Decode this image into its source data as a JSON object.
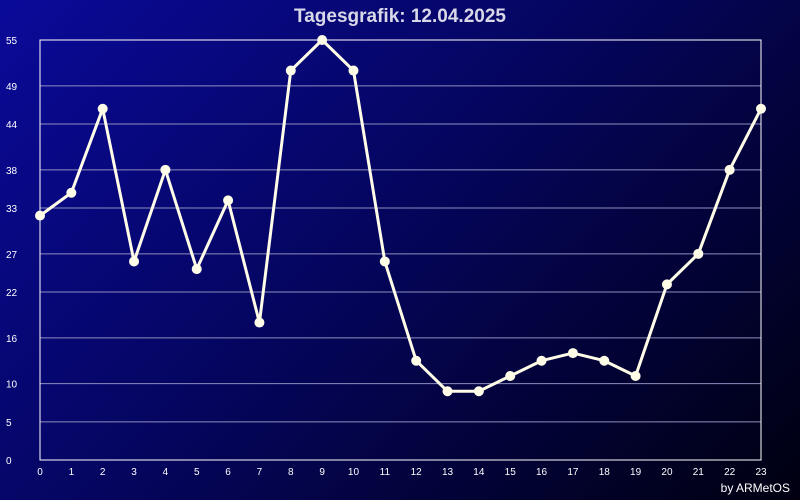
{
  "chart_data": {
    "type": "line",
    "title": "Tagesgrafik: 12.04.2025",
    "x": [
      0,
      1,
      2,
      3,
      4,
      5,
      6,
      7,
      8,
      9,
      10,
      11,
      12,
      13,
      14,
      15,
      16,
      17,
      18,
      19,
      20,
      21,
      22,
      23
    ],
    "series": [
      {
        "values": [
          32,
          35,
          46,
          26,
          38,
          25,
          34,
          18,
          51,
          55,
          51,
          26,
          13,
          9,
          9,
          11,
          13,
          14,
          13,
          11,
          23,
          27,
          38,
          46
        ]
      }
    ],
    "y_ticks": [
      0,
      5,
      10,
      16,
      22,
      27,
      33,
      38,
      44,
      49,
      55
    ],
    "ylim": [
      0,
      55
    ],
    "xlim": [
      0,
      23
    ],
    "grid": true,
    "line_color": "#fffde8",
    "grid_color": "#8e8ebe"
  },
  "footer": {
    "credit": "by ARMetOS"
  }
}
